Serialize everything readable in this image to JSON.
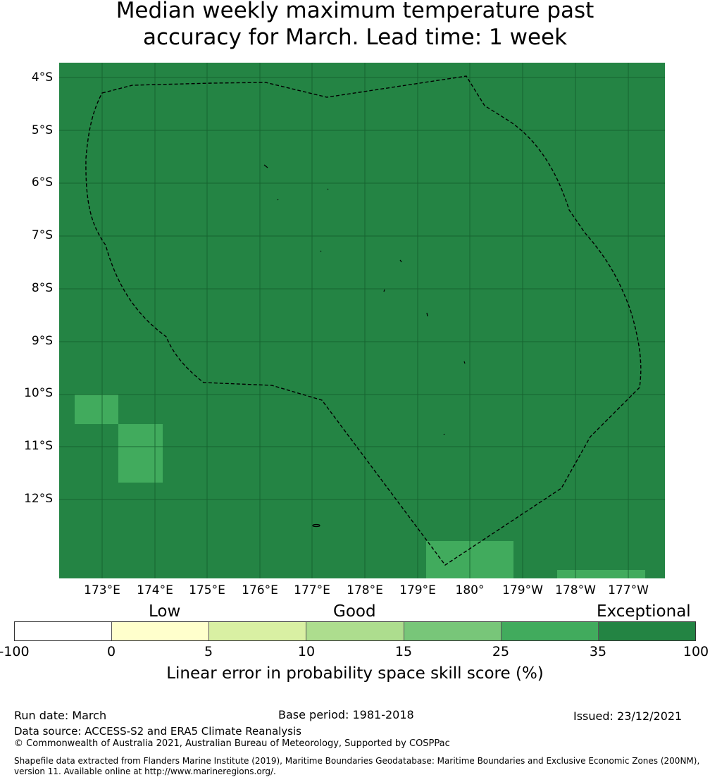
{
  "title": {
    "line1": "Median weekly maximum temperature past",
    "line2": "accuracy for March. Lead time: 1 week"
  },
  "map": {
    "background_color": "#248444",
    "cell_color": "#41ab5d",
    "boundary": "EEZ dashed boundary",
    "lat_labels": [
      "4°S",
      "5°S",
      "6°S",
      "7°S",
      "8°S",
      "9°S",
      "10°S",
      "11°S",
      "12°S"
    ],
    "lon_labels": [
      "173°E",
      "174°E",
      "175°E",
      "176°E",
      "177°E",
      "178°E",
      "179°E",
      "180°",
      "179°W",
      "178°W",
      "177°W"
    ]
  },
  "legend": {
    "categories": [
      "Low",
      "Good",
      "Exceptional"
    ],
    "ticks": [
      "-100",
      "0",
      "5",
      "10",
      "15",
      "25",
      "35",
      "100"
    ],
    "colors": [
      "#ffffff",
      "#ffffcc",
      "#d9f0a3",
      "#addd8e",
      "#78c679",
      "#41ab5d",
      "#238443"
    ],
    "label": "Linear error in probability space skill score (%)"
  },
  "footer": {
    "run_date": "Run date: March",
    "base_period": "Base period: 1981-2018",
    "issued": "Issued: 23/12/2021",
    "data_source": "Data source: ACCESS-S2 and ERA5 Climate Reanalysis",
    "copyright": "© Commonwealth of Australia 2021, Australian Bureau of Meteorology, Supported by COSPPac",
    "shapefile": "Shapefile data extracted from Flanders Marine Institute (2019), Maritime Boundaries Geodatabase: Maritime Boundaries and Exclusive Economic Zones (200NM), version 11. Available online at http://www.marineregions.org/."
  }
}
